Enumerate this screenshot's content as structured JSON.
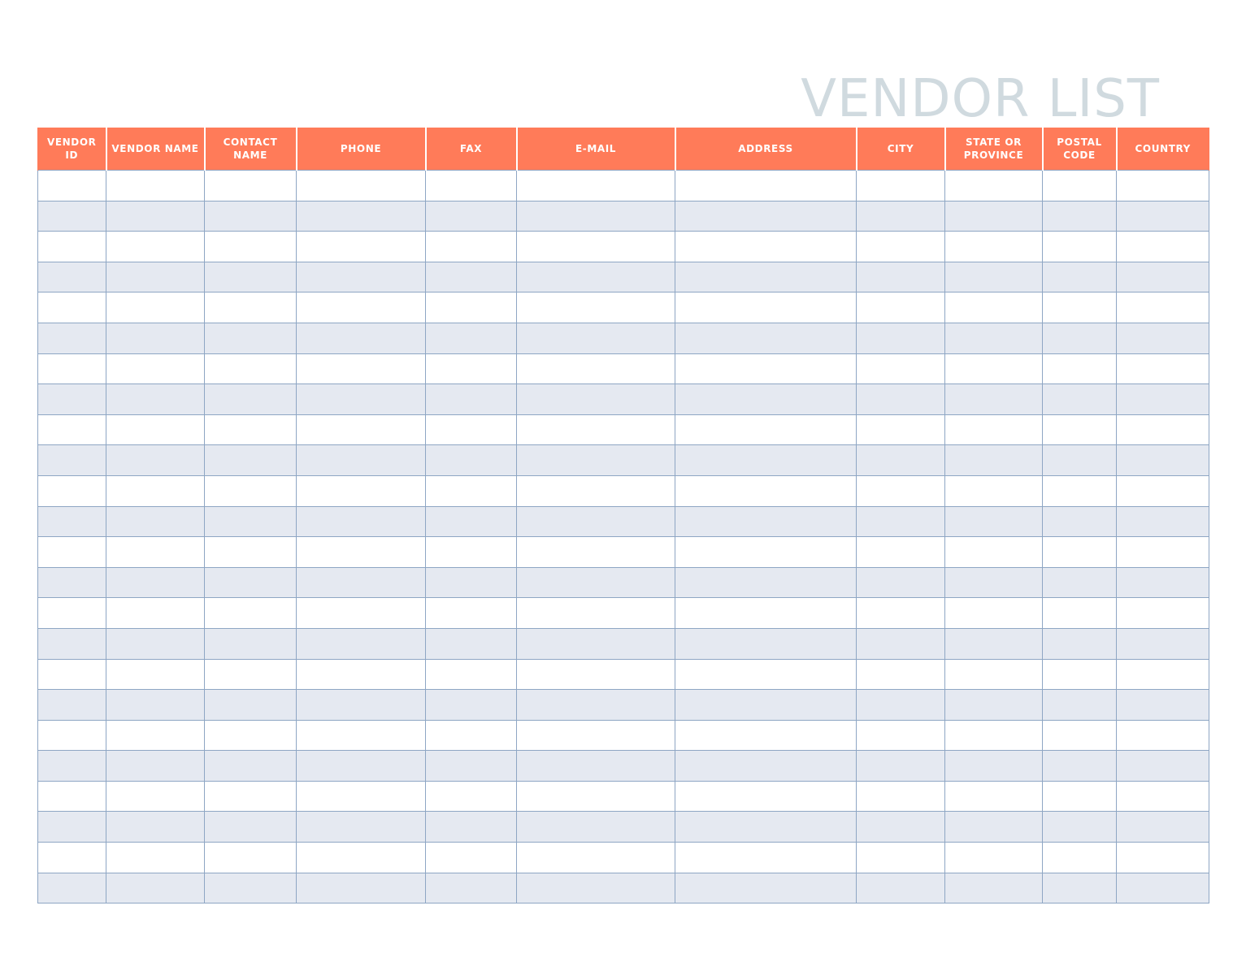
{
  "title": "VENDOR LIST",
  "colors": {
    "header": "#FF7B59",
    "title": "#D0DADF",
    "border": "#8EA6C4",
    "alt_row": "#E5E9F1"
  },
  "columns": [
    "VENDOR ID",
    "VENDOR NAME",
    "CONTACT NAME",
    "PHONE",
    "FAX",
    "E-MAIL",
    "ADDRESS",
    "CITY",
    "STATE OR PROVINCE",
    "POSTAL CODE",
    "COUNTRY"
  ]
}
